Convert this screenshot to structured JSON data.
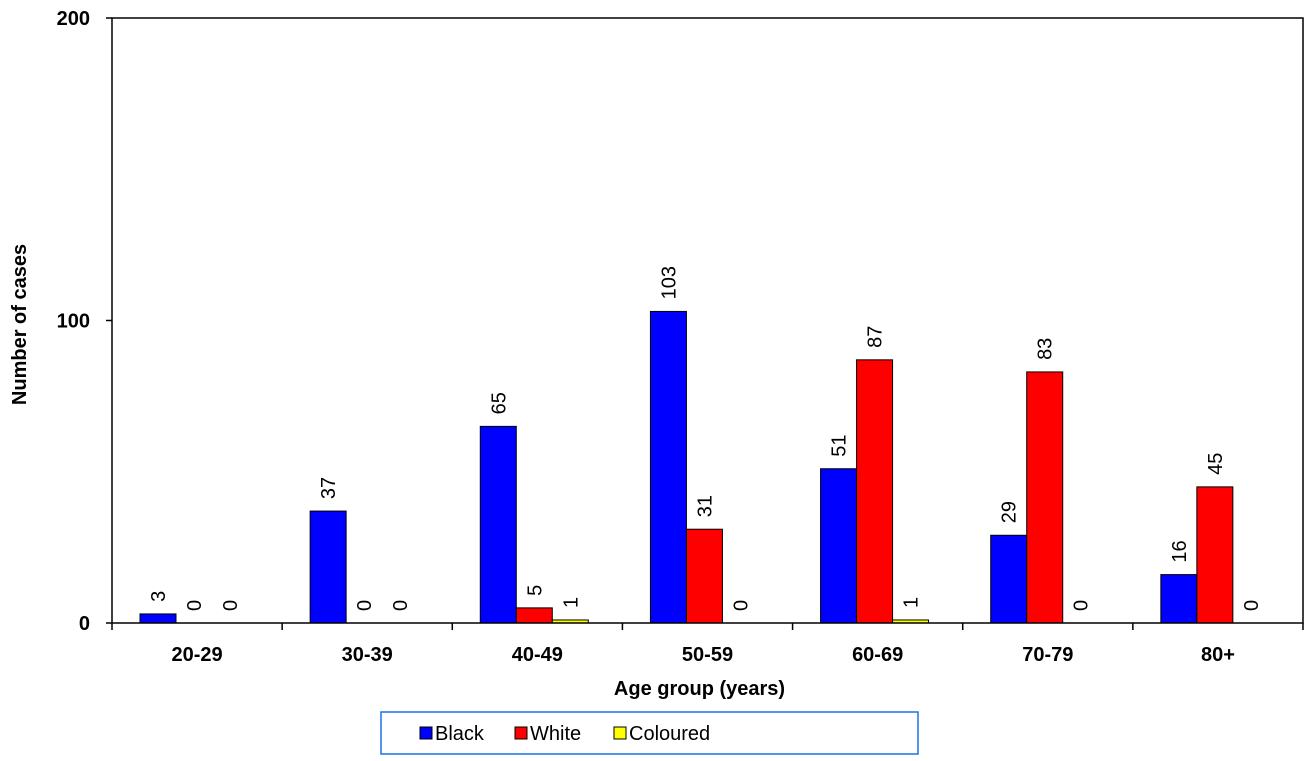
{
  "chart_data": {
    "type": "bar",
    "xlabel": "Age group (years)",
    "ylabel": "Number of cases",
    "ylim": [
      0,
      200
    ],
    "yticks": [
      0,
      100,
      200
    ],
    "categories": [
      "20-29",
      "30-39",
      "40-49",
      "50-59",
      "60-69",
      "70-79",
      "80+"
    ],
    "series": [
      {
        "name": "Black",
        "color": "#0000FF",
        "values": [
          3,
          37,
          65,
          103,
          51,
          29,
          16
        ]
      },
      {
        "name": "White",
        "color": "#FF0000",
        "values": [
          0,
          0,
          5,
          31,
          87,
          83,
          45
        ]
      },
      {
        "name": "Coloured",
        "color": "#FFFF00",
        "values": [
          0,
          0,
          1,
          0,
          1,
          0,
          0
        ]
      }
    ],
    "legend": {
      "position": "bottom-center"
    },
    "grid": false
  }
}
